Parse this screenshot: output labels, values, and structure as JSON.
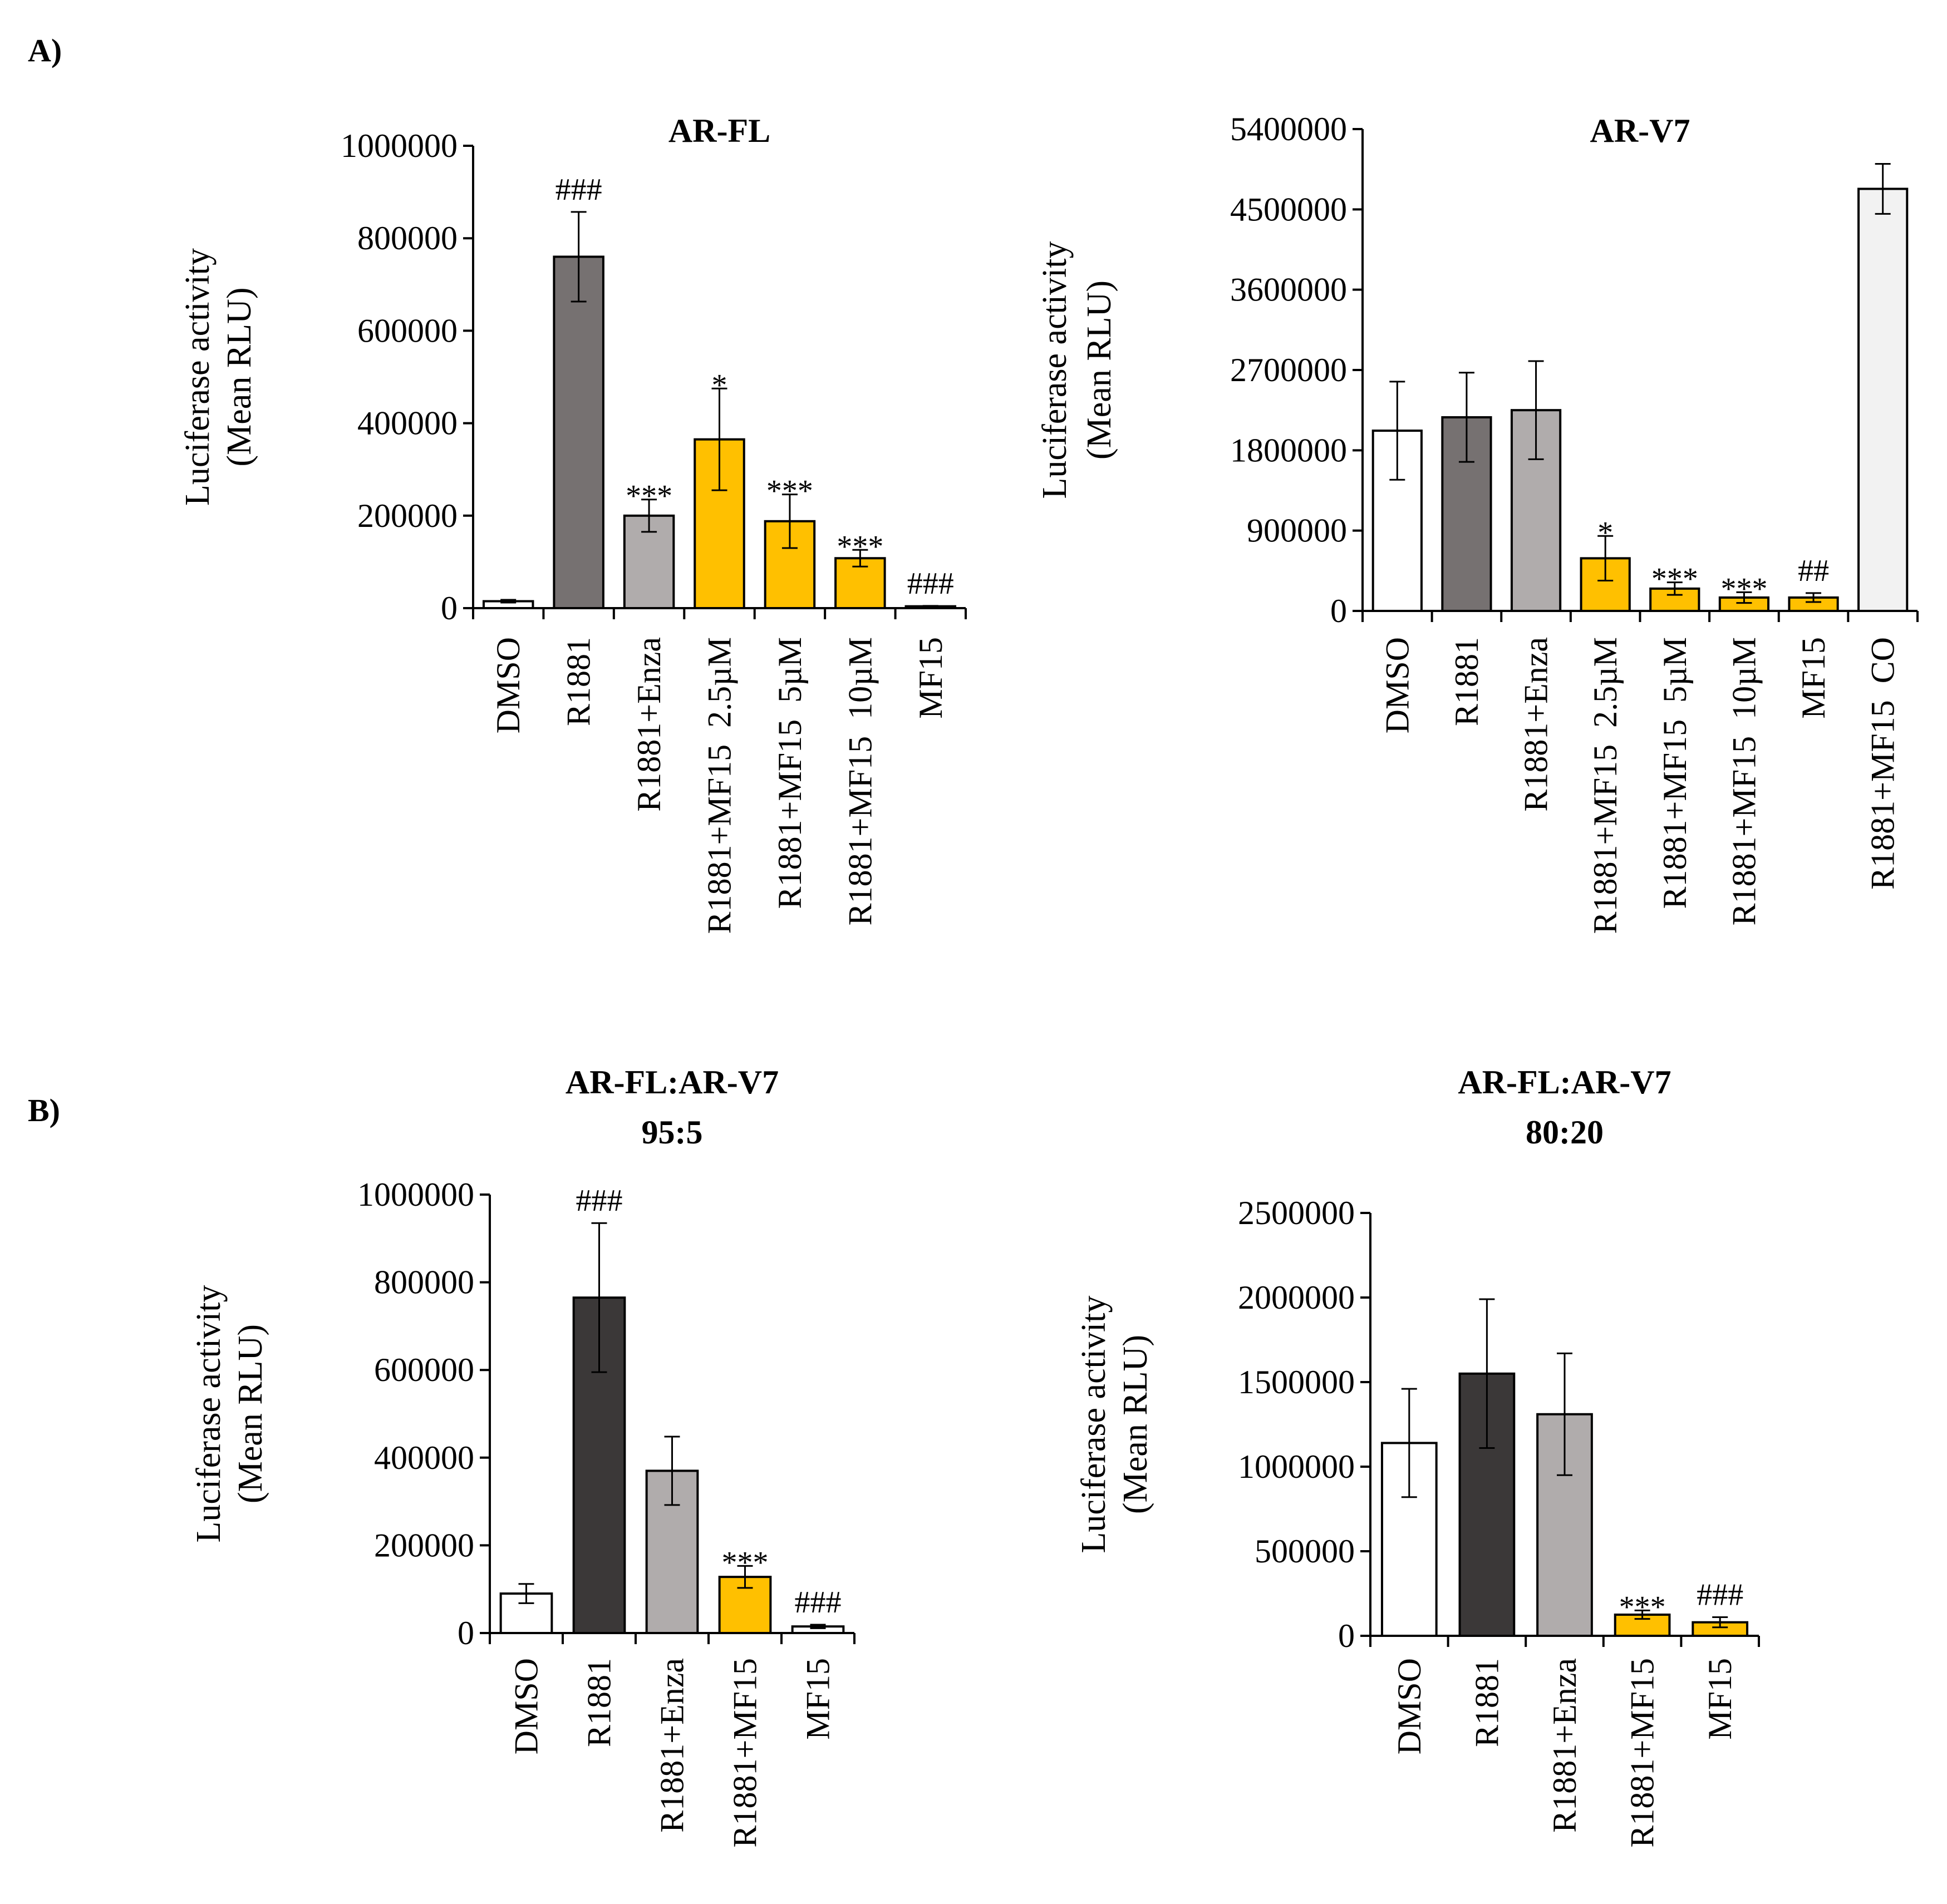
{
  "panels": {
    "A": "A)",
    "B": "B)"
  },
  "chart_data": [
    {
      "type": "bar",
      "title": "AR-FL",
      "xlabel": "",
      "ylabel": [
        "Luciferase activity",
        "(Mean RLU)"
      ],
      "ylim": [
        0,
        1000000
      ],
      "yticks": [
        0,
        200000,
        400000,
        600000,
        800000,
        1000000
      ],
      "ytick_labels": [
        "0",
        "200000",
        "400000",
        "600000",
        "800000",
        "1000000"
      ],
      "categories": [
        "DMSO",
        "R1881",
        "R1881+Enza",
        "R1881+MF15  2.5µM",
        "R1881+MF15  5µM",
        "R1881+MF15  10µM",
        "MF15"
      ],
      "values": [
        15000,
        760000,
        200000,
        365000,
        188000,
        108000,
        4000
      ],
      "errors": [
        3000,
        97000,
        35000,
        110000,
        58000,
        18000,
        1000
      ],
      "colors": [
        "#ffffff",
        "#767171",
        "#b0acac",
        "#ffc000",
        "#ffc000",
        "#ffc000",
        "#ffffff"
      ],
      "annotations": [
        "",
        "###",
        "***",
        "*",
        "***",
        "***",
        "###"
      ]
    },
    {
      "type": "bar",
      "title": "AR-V7",
      "xlabel": "",
      "ylabel": [
        "Luciferase activity",
        "(Mean RLU)"
      ],
      "ylim": [
        0,
        5400000
      ],
      "yticks": [
        0,
        900000,
        1800000,
        2700000,
        3600000,
        4500000,
        5400000
      ],
      "ytick_labels": [
        "0",
        "900000",
        "1800000",
        "2700000",
        "3600000",
        "4500000",
        "5400000"
      ],
      "categories": [
        "DMSO",
        "R1881",
        "R1881+Enza",
        "R1881+MF15  2.5µM",
        "R1881+MF15  5µM",
        "R1881+MF15  10µM",
        "MF15",
        "R1881+MF15  CO"
      ],
      "values": [
        2020000,
        2170000,
        2250000,
        590000,
        250000,
        150000,
        150000,
        4730000
      ],
      "errors": [
        550000,
        500000,
        550000,
        250000,
        70000,
        60000,
        50000,
        280000
      ],
      "colors": [
        "#ffffff",
        "#767171",
        "#b0acac",
        "#ffc000",
        "#ffc000",
        "#ffc000",
        "#ffc000",
        "#f2f2f2"
      ],
      "annotations": [
        "",
        "",
        "",
        "*",
        "***",
        "***",
        "##",
        ""
      ]
    },
    {
      "type": "bar",
      "title": [
        "AR-FL:AR-V7",
        "95:5"
      ],
      "xlabel": "",
      "ylabel": [
        "Luciferase activity",
        "(Mean RLU)"
      ],
      "ylim": [
        0,
        1000000
      ],
      "yticks": [
        0,
        200000,
        400000,
        600000,
        800000,
        1000000
      ],
      "ytick_labels": [
        "0",
        "200000",
        "400000",
        "600000",
        "800000",
        "1000000"
      ],
      "categories": [
        "DMSO",
        "R1881",
        "R1881+Enza",
        "R1881+MF15",
        "MF15"
      ],
      "values": [
        90000,
        765000,
        370000,
        128000,
        15000
      ],
      "errors": [
        22000,
        170000,
        78000,
        25000,
        4000
      ],
      "colors": [
        "#ffffff",
        "#3b3838",
        "#b0acac",
        "#ffc000",
        "#ffffff"
      ],
      "annotations": [
        "",
        "###",
        "",
        "***",
        "###"
      ]
    },
    {
      "type": "bar",
      "title": [
        "AR-FL:AR-V7",
        "80:20"
      ],
      "xlabel": "",
      "ylabel": [
        "Luciferase activity",
        "(Mean RLU)"
      ],
      "ylim": [
        0,
        2500000
      ],
      "yticks": [
        0,
        500000,
        1000000,
        1500000,
        2000000,
        2500000
      ],
      "ytick_labels": [
        "0",
        "500000",
        "1000000",
        "1500000",
        "2000000",
        "2500000"
      ],
      "categories": [
        "DMSO",
        "R1881",
        "R1881+Enza",
        "R1881+MF15",
        "MF15"
      ],
      "values": [
        1140000,
        1550000,
        1310000,
        125000,
        80000
      ],
      "errors": [
        320000,
        440000,
        360000,
        25000,
        30000
      ],
      "colors": [
        "#ffffff",
        "#3b3838",
        "#b0acac",
        "#ffc000",
        "#ffc000"
      ],
      "annotations": [
        "",
        "",
        "",
        "***",
        "###"
      ]
    }
  ]
}
